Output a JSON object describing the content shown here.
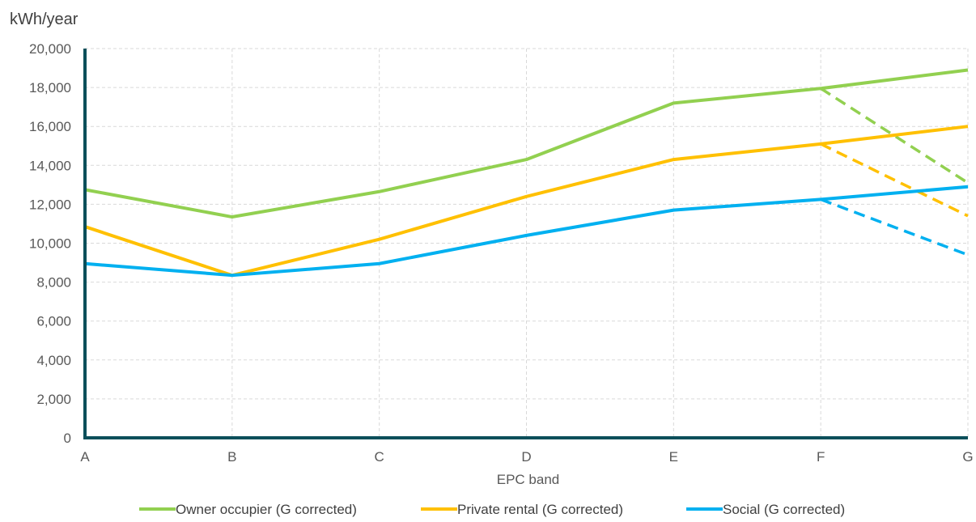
{
  "chart_data": {
    "type": "line",
    "ylabel": "kWh/year",
    "xlabel": "EPC band",
    "categories": [
      "A",
      "B",
      "C",
      "D",
      "E",
      "F",
      "G"
    ],
    "ylim": [
      0,
      20000
    ],
    "yticks": [
      0,
      2000,
      4000,
      6000,
      8000,
      10000,
      12000,
      14000,
      16000,
      18000,
      20000
    ],
    "ytick_labels": [
      "0",
      "2,000",
      "4,000",
      "6,000",
      "8,000",
      "10,000",
      "12,000",
      "14,000",
      "16,000",
      "18,000",
      "20,000"
    ],
    "grid": true,
    "legend_position": "bottom",
    "series": [
      {
        "name": "Owner occupier (G corrected)",
        "color": "#92D050",
        "values": [
          12750,
          11350,
          12650,
          14300,
          17200,
          17950,
          18900
        ]
      },
      {
        "name": "Private rental (G corrected)",
        "color": "#FFC000",
        "values": [
          10850,
          8350,
          10200,
          12400,
          14300,
          15100,
          16000
        ]
      },
      {
        "name": "Social (G corrected)",
        "color": "#00B0F0",
        "values": [
          8950,
          8350,
          8950,
          10400,
          11700,
          12250,
          12900
        ]
      }
    ],
    "dashed_series": [
      {
        "color": "#92D050",
        "x": [
          "F",
          "G"
        ],
        "values": [
          17950,
          13100
        ]
      },
      {
        "color": "#FFC000",
        "x": [
          "F",
          "G"
        ],
        "values": [
          15100,
          11400
        ]
      },
      {
        "color": "#00B0F0",
        "x": [
          "F",
          "G"
        ],
        "values": [
          12250,
          9400
        ]
      }
    ]
  }
}
